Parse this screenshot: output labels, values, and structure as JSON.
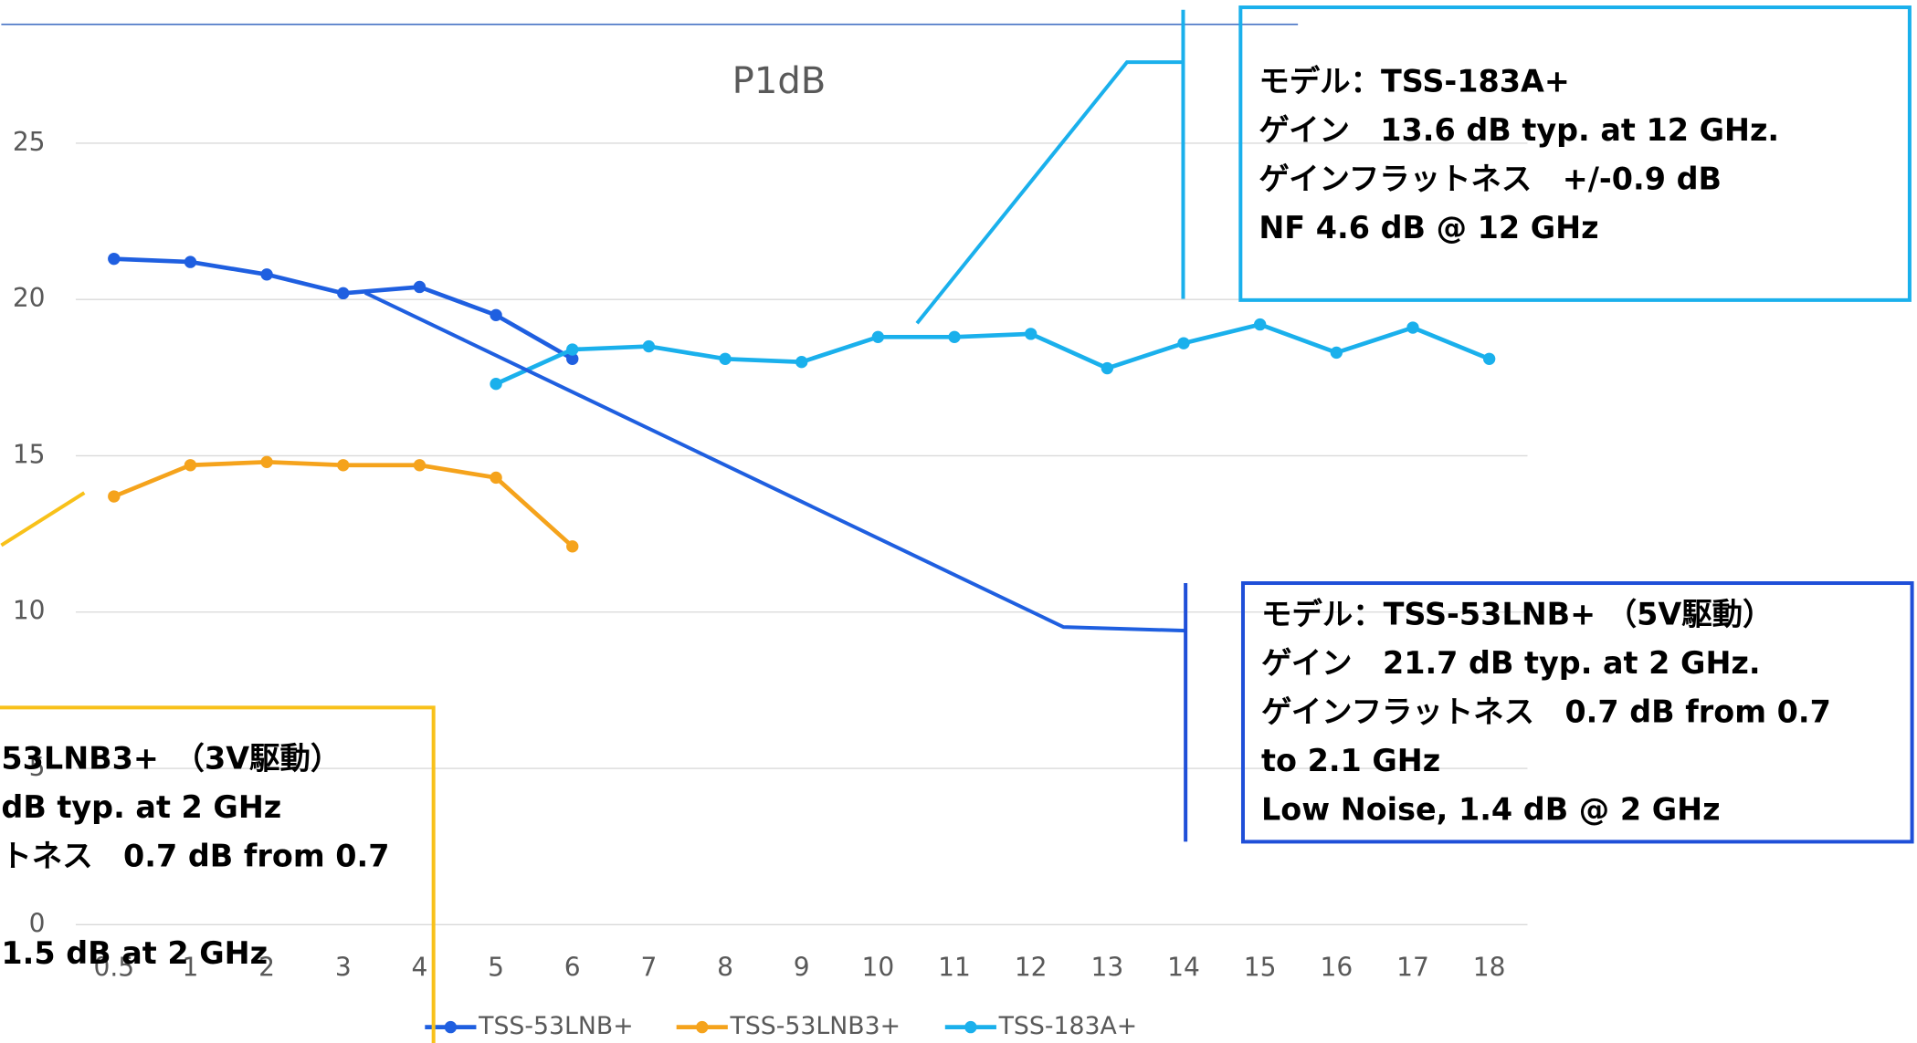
{
  "chart_data": {
    "type": "line",
    "title": "P1dB",
    "categories": [
      "0.5",
      "1",
      "2",
      "3",
      "4",
      "5",
      "6",
      "7",
      "8",
      "9",
      "10",
      "11",
      "12",
      "13",
      "14",
      "15",
      "16",
      "17",
      "18"
    ],
    "series": [
      {
        "name": "TSS-53LNB+",
        "color": "#1f5fe0",
        "values": [
          21.3,
          21.2,
          20.8,
          20.2,
          20.4,
          19.5,
          18.1,
          null,
          null,
          null,
          null,
          null,
          null,
          null,
          null,
          null,
          null,
          null,
          null
        ]
      },
      {
        "name": "TSS-53LNB3+",
        "color": "#f5a31c",
        "values": [
          13.7,
          14.7,
          14.8,
          14.7,
          14.7,
          14.3,
          12.1,
          null,
          null,
          null,
          null,
          null,
          null,
          null,
          null,
          null,
          null,
          null,
          null
        ]
      },
      {
        "name": "TSS-183A+",
        "color": "#1ab0ec",
        "values": [
          null,
          null,
          null,
          null,
          null,
          17.3,
          18.4,
          18.5,
          18.1,
          18.0,
          18.8,
          18.8,
          18.9,
          17.8,
          18.6,
          19.2,
          18.3,
          19.1,
          18.1
        ]
      }
    ],
    "ylim": [
      0,
      28.8
    ],
    "yticks": [
      0,
      5,
      10,
      15,
      20,
      25
    ],
    "grid": true,
    "legend": "bottom",
    "annotations": [
      {
        "lines": [
          "モデル：TSS-183A+",
          "ゲイン　13.6 dB typ. at 12 GHz.",
          "ゲインフラットネス　+/-0.9 dB",
          "NF  4.6 dB @ 12 GHz"
        ]
      },
      {
        "lines": [
          "モデル：TSS-53LNB+ （5V駆動）",
          "ゲイン　21.7 dB typ. at 2 GHz.",
          "ゲインフラットネス　0.7 dB from 0.7",
          "to 2.1 GHz",
          "Low Noise, 1.4 dB @ 2 GHz"
        ]
      },
      {
        "lines": [
          "53LNB3+　（3V駆動）",
          " dB typ. at 2 GHz",
          "トネス　0.7 dB from 0.7",
          "1.5 dB at 2 GHz"
        ]
      }
    ]
  }
}
